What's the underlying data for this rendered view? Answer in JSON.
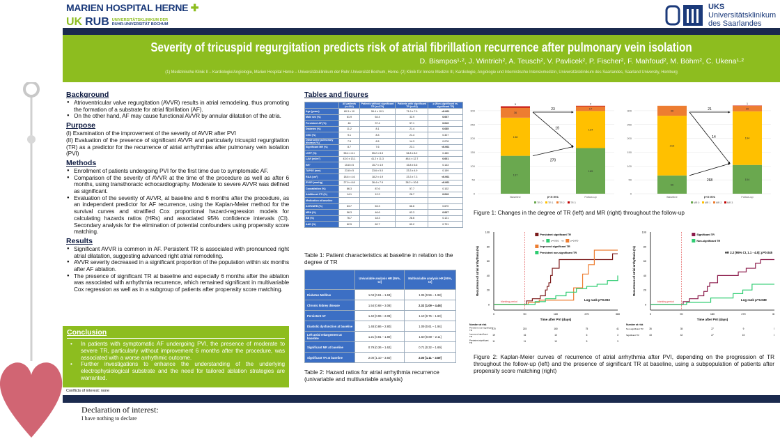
{
  "logos": {
    "left_line1": "MARIEN HOSPITAL HERNE",
    "left_line2a": "UK",
    "left_line2b": "RUB",
    "left_line2c": "UNIVERSITÄTSKLINIKUM DER",
    "left_line2d": "RUHR-UNIVERSITÄT BOCHUM",
    "right_line1": "UKS",
    "right_line2": "Universitätsklinikum",
    "right_line3": "des Saarlandes"
  },
  "header": {
    "title": "Severity of tricuspid regurgitation predicts risk of atrial fibrillation recurrence after pulmonary vein isolation",
    "authors": "D. Bismpos¹·², J. Wintrich², A. Teusch², V. Pavlicek², P. Fischer², F. Mahfoud², M. Böhm², C. Ukena¹·²",
    "affiliations": "(1) Medizinische Klinik II – Kardiologie/Angiologie, Marien Hospital Herne – Universitätsklinikum der Ruhr-Universität Bochum, Herne. (2) Klinik für Innere Medizin III, Kardiologie, Angiologie und Internistische Intensivmedizin, Universitätsklinikum des Saarlandes, Saarland University, Homburg"
  },
  "background": {
    "heading": "Background",
    "items": [
      "Atrioventricular valve regurgitation (AVVR) results in atrial remodeling, thus promoting the formation of a substrate for atrial fibrillation (AF).",
      "On the other hand, AF may cause functional AVVR by annular dilatation of the atria."
    ]
  },
  "purpose": {
    "heading": "Purpose",
    "lines": [
      "(I)   Examination of the improvement of the severity of AVVR after PVI",
      "(II)  Evaluation of the presence of significant AVVR and particularly tricuspid regurgitation (TR) as a predictor for the recurrence of atrial arrhythmias after pulmonary vein isolation (PVI)"
    ]
  },
  "methods": {
    "heading": "Methods",
    "items": [
      "Enrollment of patients undergoing PVI for the first time due to symptomatic AF.",
      "Comparison of the severity of AVVR at the time of the procedure as well as after 6 months, using transthoracic echocardiography. Moderate to severe AVVR was defined as significant.",
      "Evaluation of the severity of AVVR, at baseline and 6 months after the procedure, as an independent predictor for AF recurrence, using the Kaplan-Meier method for the survival curves and stratified Cox proportional hazard-regression models for calculating hazards ratios (HRs) and associated 95% confidence intervals (CI). Secondary analysis for the elimination of potential confounders using propensity score matching."
    ]
  },
  "results": {
    "heading": "Results",
    "items": [
      "Significant AVVR is common in AF. Persistent TR is associated with pronounced right atrial dilatation, suggesting advanced right atrial remodeling.",
      "AVVR severity decreased in a significant proportion of the population within six months after AF ablation.",
      "The presence of significant TR at baseline and especially 6 months after the ablation was associated with arrhythmia recurrence, which remained significant in multivariable Cox regression as well as in a subgroup of patients after propensity score matching."
    ]
  },
  "conclusion": {
    "heading": "Conclusion",
    "items": [
      "In patients with symptomatic AF undergoing PVI, the presence of moderate to severe TR, particularly without improvement 6 months after the procedure, was associated with a worse arrhythmic outcome.",
      "Further investigations to enhance the understanding of the underlying electrophysiological substrate and the need for tailored ablation strategies are warranted."
    ]
  },
  "conflicts": "Conflicts of interest: none",
  "declaration": {
    "heading": "Declaration of interest:",
    "text": "I have nothing to declare"
  },
  "tables_heading": "Tables and figures",
  "table1": {
    "headers": [
      "",
      "All patients (n=332)",
      "Patients without significant TR (n=270)",
      "Patients with significant TR (n=62)",
      "p (Non-significant vs. significant TR)"
    ],
    "rows": [
      [
        "Age (years)",
        "60.3 ± 10",
        "59.4 ± 10.1",
        "71.9 ± 7.9",
        "<0.001"
      ],
      [
        "Male sex (%)",
        "61.9",
        "64.4",
        "32.9",
        "0.007"
      ],
      [
        "Persistent AF (%)",
        "46",
        "37.4",
        "57.1",
        "0.019"
      ],
      [
        "Diabetes (%)",
        "11.2",
        "8.1",
        "21.4",
        "0.035"
      ],
      [
        "CKD (%)",
        "9.1",
        "8.3",
        "21.4",
        "0.327"
      ],
      [
        "Obstructive pulmonary disease (%)",
        "7.5",
        "6.5",
        "14.3",
        "0.078"
      ],
      [
        "Significant MR (%)",
        "8.7",
        "7.6",
        "23.1",
        "<0.001"
      ],
      [
        "LVEF (%)",
        "55.4 ± 8.1",
        "55.2 ± 8.3",
        "54.8 ± 8.2",
        "0.485"
      ],
      [
        "LAVI (ml/m²)",
        "43.0 ± 13.1",
        "41.2 ± 11.3",
        "48.4 ± 12.7",
        "0.001"
      ],
      [
        "E/E'",
        "15.8 ± 5",
        "15.7 ± 4.9",
        "15.8 ± 5.6",
        "0.143"
      ],
      [
        "TAPSE (mm)",
        "23.8 ± 5",
        "23.6 ± 5.0",
        "23.3 ± 4.9",
        "0.159"
      ],
      [
        "RAA (cm²)",
        "18.6 ± 4.6",
        "18.2 ± 4.9",
        "23.3 ± 7.3",
        "<0.001"
      ],
      [
        "RVSP (mmHg)",
        "27.9 ± 8.8",
        "26.4 ± 7.9",
        "38.2 ± 10.6",
        "<0.001"
      ],
      [
        "Cryoablation (%)",
        "86.3",
        "87.6",
        "57.7",
        "0.102"
      ],
      [
        "Additional CTI (%)",
        "14.1",
        "12.2",
        "28.7",
        "0.019"
      ],
      [
        "Medication at baseline",
        "",
        "",
        "",
        ""
      ],
      [
        "ACEI/ARB (%)",
        "63.7",
        "63.3",
        "66.6",
        "0.670"
      ],
      [
        "MRA (%)",
        "56.3",
        "46.6",
        "63.3",
        "0.007"
      ],
      [
        "BB (%)",
        "76.7",
        "18.3",
        "28.6",
        "0.121"
      ],
      [
        "AAD (%)",
        "62.5",
        "62.7",
        "60.2",
        "0.701"
      ]
    ]
  },
  "table1_caption": "Table 1: Patient characteristics at baseline in relation to the degree of TR",
  "table2": {
    "headers": [
      "",
      "Univariable analysis HR [95%, CI]",
      "Multivariable analysis HR [95%, CI]"
    ],
    "rows": [
      [
        "Diabetes Mellitus",
        "1.04 [0.61 – 1.63]",
        "1.06 [0.56 – 1.98]"
      ],
      [
        "Chronic kidney disease",
        "1.54 [0.68 – 3.08]",
        "2.32 [1.09 – 4.46]"
      ],
      [
        "Persistent AF",
        "1.42 [0.96 – 2.09]",
        "1.10 [0.75 – 1.60]"
      ],
      [
        "Diastolic dysfunction at baseline",
        "1.48 [0.86 – 2.80]",
        "1.09 [0.61 – 1.94]"
      ],
      [
        "Left atrial enlargement at baseline",
        "1.21 [0.81 – 1.80]",
        "1.50 [0.80 – 2.11]"
      ],
      [
        "Significant MR at baseline",
        "0.79 [0.36 – 1.62]",
        "0.71 [0.32 – 1.69]"
      ],
      [
        "Significant TR at baseline",
        "2.00 [1.10 – 3.60]",
        "2.00 [1.11 – 3.59]"
      ]
    ]
  },
  "table2_caption": "Table 2: Hazard ratios for atrial arrhythmia recurrence (univariable and multivariable analysis)",
  "figure1_caption": "Figure 1: Changes in the degree of TR (left) and MR (right) throughout the follow-up",
  "figure2_caption": "Figure 2: Kaplan-Meier curves of recurrence of atrial arrhythmia after PVI,  depending on the progression of TR throughout the follow-up (left) and the presence of significant TR at baseline, using a subpopulation of patients after propensity score matching (right)",
  "colors": {
    "navy": "#1b2a4e",
    "green": "#8dbd1f",
    "table_blue": "#3c6fc4",
    "grade0": "#6aa84f",
    "grade1": "#ffc000",
    "grade2": "#ed7d31",
    "grade3": "#c00000"
  },
  "chart_data": [
    {
      "type": "bar",
      "stacked": true,
      "categories": [
        "Baseline",
        "Follow-up"
      ],
      "ylim": [
        0,
        300
      ],
      "yticks": [
        0,
        50,
        100,
        150,
        200,
        250,
        300
      ],
      "legend": [
        "TR 0",
        "TR 1",
        "TR 2",
        "TR 3"
      ],
      "series": [
        {
          "name": "TR 0",
          "values": [
            137,
            165
          ]
        },
        {
          "name": "TR 1",
          "values": [
            138,
            134
          ]
        },
        {
          "name": "TR 2",
          "values": [
            36,
            17
          ]
        },
        {
          "name": "TR 3",
          "values": [
            5,
            2
          ]
        }
      ],
      "arrows": [
        "23",
        "19",
        "270"
      ],
      "annotation": "p<0.001"
    },
    {
      "type": "bar",
      "stacked": true,
      "categories": [
        "Baseline",
        "Follow-up"
      ],
      "ylim": [
        0,
        300
      ],
      "yticks": [
        0,
        50,
        100,
        150,
        200,
        250,
        300
      ],
      "legend": [
        "MR 0",
        "MR 1",
        "MR 2",
        "MR 3"
      ],
      "series": [
        {
          "name": "MR 0",
          "values": [
            66,
            104
          ]
        },
        {
          "name": "MR 1",
          "values": [
            216,
            194
          ]
        },
        {
          "name": "MR 2",
          "values": [
            36,
            20
          ]
        },
        {
          "name": "MR 3",
          "values": [
            0,
            1
          ]
        }
      ],
      "arrows": [
        "21",
        "14",
        "268"
      ],
      "annotation": "p<0.001"
    },
    {
      "type": "line",
      "xlabel": "Time after PVI (days)",
      "ylabel": "Recurrence of atrial arrhythmia (%)",
      "xlim": [
        0,
        360
      ],
      "ylim": [
        0,
        100
      ],
      "xticks": [
        0,
        90,
        180,
        270,
        360
      ],
      "yticks": [
        0,
        20,
        40,
        60,
        80,
        100
      ],
      "blanking": "blanking period",
      "annotation": "Log rank  p=0.003",
      "pairwise": [
        "vs",
        "p=0.001",
        "vs",
        "p=0.970"
      ],
      "series": [
        {
          "name": "Persistent significant TR",
          "color": "#7b1a1a",
          "points": [
            [
              0,
              0
            ],
            [
              90,
              0
            ],
            [
              95,
              5
            ],
            [
              110,
              5
            ],
            [
              112,
              8
            ],
            [
              130,
              8
            ],
            [
              135,
              12
            ],
            [
              145,
              12
            ],
            [
              150,
              20
            ],
            [
              155,
              25
            ],
            [
              160,
              30
            ],
            [
              165,
              40
            ],
            [
              170,
              50
            ],
            [
              182,
              50
            ],
            [
              190,
              62
            ],
            [
              340,
              62
            ],
            [
              345,
              70
            ],
            [
              360,
              70
            ]
          ]
        },
        {
          "name": "Improved significant TR",
          "color": "#ed7d31",
          "points": [
            [
              0,
              0
            ],
            [
              90,
              0
            ],
            [
              100,
              3
            ],
            [
              130,
              3
            ],
            [
              132,
              6
            ],
            [
              230,
              6
            ],
            [
              232,
              23
            ],
            [
              255,
              23
            ],
            [
              258,
              42
            ],
            [
              272,
              42
            ],
            [
              275,
              55
            ],
            [
              288,
              55
            ],
            [
              292,
              75
            ],
            [
              360,
              75
            ]
          ]
        },
        {
          "name": "Persistent non-significant TR",
          "color": "#2ecc71",
          "points": [
            [
              0,
              0
            ],
            [
              90,
              0
            ],
            [
              120,
              4
            ],
            [
              150,
              8
            ],
            [
              180,
              12
            ],
            [
              210,
              17
            ],
            [
              240,
              22
            ],
            [
              270,
              25
            ],
            [
              300,
              28
            ],
            [
              330,
              33
            ],
            [
              360,
              40
            ]
          ]
        }
      ],
      "risk_table": {
        "heading": "Number at risk",
        "rows": [
          {
            "label": "Persistent non-significant TR",
            "values": [
              "270",
              "215",
              "160",
              "75",
              "41"
            ]
          },
          {
            "label": "Improved significant TR",
            "values": [
              "19",
              "16",
              "10",
              "6",
              "3"
            ]
          },
          {
            "label": "Persistent significant TR",
            "values": [
              "11",
              "11",
              "10",
              "5",
              "3"
            ]
          }
        ]
      }
    },
    {
      "type": "line",
      "xlabel": "Time after PVI (days)",
      "ylabel": "Recurrence of atrial arrhythmia (%)",
      "xlim": [
        0,
        360
      ],
      "ylim": [
        0,
        100
      ],
      "xticks": [
        0,
        90,
        180,
        270,
        360
      ],
      "yticks": [
        0,
        20,
        40,
        60,
        80,
        100
      ],
      "blanking": "blanking period",
      "annotation": "Log rank  p=0.039",
      "hr_text": "HR 2.2 [95% CI, 1.1 - 4.5]; p=0.045",
      "series": [
        {
          "name": "Significant TR",
          "color": "#8b1a4a",
          "points": [
            [
              0,
              0
            ],
            [
              90,
              0
            ],
            [
              95,
              4
            ],
            [
              110,
              4
            ],
            [
              113,
              8
            ],
            [
              130,
              8
            ],
            [
              138,
              12
            ],
            [
              150,
              12
            ],
            [
              155,
              18
            ],
            [
              165,
              25
            ],
            [
              172,
              30
            ],
            [
              188,
              30
            ],
            [
              195,
              40
            ],
            [
              250,
              40
            ],
            [
              255,
              45
            ],
            [
              272,
              45
            ],
            [
              278,
              50
            ],
            [
              298,
              50
            ],
            [
              305,
              57
            ],
            [
              315,
              57
            ],
            [
              320,
              62
            ],
            [
              360,
              62
            ]
          ]
        },
        {
          "name": "Non-significant TR",
          "color": "#2ecc71",
          "points": [
            [
              0,
              0
            ],
            [
              90,
              0
            ],
            [
              105,
              3
            ],
            [
              170,
              3
            ],
            [
              175,
              9
            ],
            [
              235,
              9
            ],
            [
              240,
              15
            ],
            [
              265,
              15
            ],
            [
              268,
              20
            ],
            [
              290,
              20
            ],
            [
              295,
              28
            ],
            [
              360,
              28
            ]
          ]
        }
      ],
      "risk_table": {
        "heading": "Number at risk",
        "rows": [
          {
            "label": "Non-significant TR",
            "values": [
              "35",
              "35",
              "27",
              "9",
              "5"
            ]
          },
          {
            "label": "Significant TR",
            "values": [
              "43",
              "42",
              "27",
              "15",
              "8"
            ]
          }
        ]
      }
    }
  ]
}
